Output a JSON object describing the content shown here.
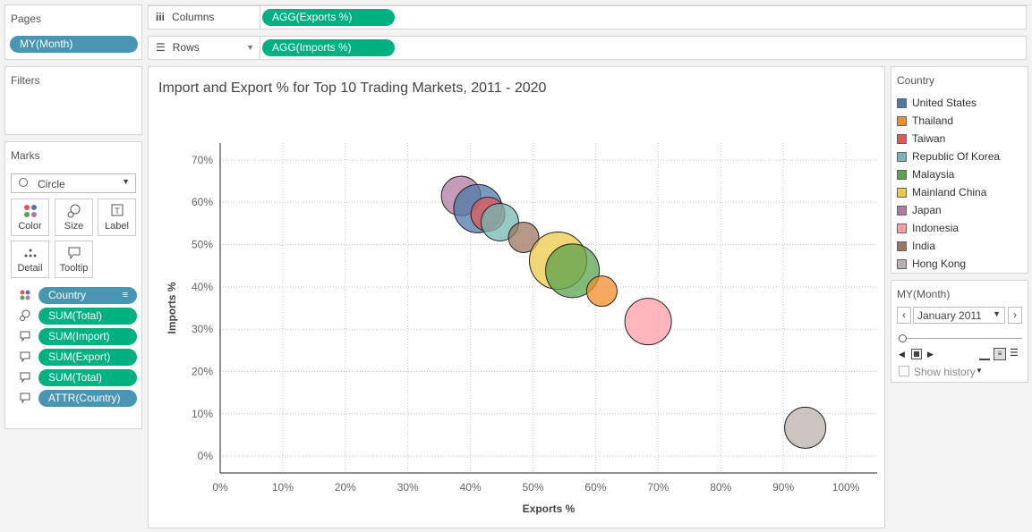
{
  "pages": {
    "title": "Pages",
    "pill": "MY(Month)"
  },
  "filters": {
    "title": "Filters"
  },
  "marks": {
    "title": "Marks",
    "type": "Circle",
    "buttons": [
      {
        "label": "Color",
        "icon": "color-icon"
      },
      {
        "label": "Size",
        "icon": "size-icon"
      },
      {
        "label": "Label",
        "icon": "label-icon"
      },
      {
        "label": "Detail",
        "icon": "detail-icon"
      },
      {
        "label": "Tooltip",
        "icon": "tooltip-icon"
      }
    ],
    "fields": [
      {
        "icon": "color-icon",
        "label": "Country",
        "style": "blue"
      },
      {
        "icon": "size-icon",
        "label": "SUM(Total)",
        "style": "green"
      },
      {
        "icon": "tooltip-icon",
        "label": "SUM(Import)",
        "style": "green"
      },
      {
        "icon": "tooltip-icon",
        "label": "SUM(Export)",
        "style": "green"
      },
      {
        "icon": "tooltip-icon",
        "label": "SUM(Total)",
        "style": "green"
      },
      {
        "icon": "tooltip-icon",
        "label": "ATTR(Country)",
        "style": "blue"
      }
    ]
  },
  "shelves": {
    "columns_label": "Columns",
    "columns_pill": "AGG(Exports %)",
    "rows_label": "Rows",
    "rows_pill": "AGG(Imports %)"
  },
  "legend": {
    "title": "Country",
    "items": [
      {
        "name": "United States",
        "color": "#4e79a7"
      },
      {
        "name": "Thailand",
        "color": "#f28e2b"
      },
      {
        "name": "Taiwan",
        "color": "#e15759"
      },
      {
        "name": "Republic Of Korea",
        "color": "#76b7b2"
      },
      {
        "name": "Malaysia",
        "color": "#59a14f"
      },
      {
        "name": "Mainland China",
        "color": "#edc948"
      },
      {
        "name": "Japan",
        "color": "#b07aa1"
      },
      {
        "name": "Indonesia",
        "color": "#ff9da7"
      },
      {
        "name": "India",
        "color": "#9c755f"
      },
      {
        "name": "Hong Kong",
        "color": "#bab0ac"
      }
    ]
  },
  "page_control": {
    "title": "MY(Month)",
    "selected": "January 2011",
    "show_history": "Show history"
  },
  "chart_data": {
    "type": "scatter",
    "title": "Import and Export % for Top 10 Trading Markets, 2011 - 2020",
    "xlabel": "Exports %",
    "ylabel": "Imports %",
    "xlim": [
      0,
      1.05
    ],
    "ylim": [
      -0.04,
      0.74
    ],
    "x_ticks": [
      0,
      0.1,
      0.2,
      0.3,
      0.4,
      0.5,
      0.6,
      0.7,
      0.8,
      0.9,
      1.0
    ],
    "x_tick_labels": [
      "0%",
      "10%",
      "20%",
      "30%",
      "40%",
      "50%",
      "60%",
      "70%",
      "80%",
      "90%",
      "100%"
    ],
    "y_ticks": [
      0,
      0.1,
      0.2,
      0.3,
      0.4,
      0.5,
      0.6,
      0.7
    ],
    "y_tick_labels": [
      "0%",
      "10%",
      "20%",
      "30%",
      "40%",
      "50%",
      "60%",
      "70%"
    ],
    "grid": true,
    "size_field": "SUM(Total)",
    "points": [
      {
        "country": "Japan",
        "x": 0.385,
        "y": 0.615,
        "size": 22
      },
      {
        "country": "United States",
        "x": 0.412,
        "y": 0.585,
        "size": 27
      },
      {
        "country": "Taiwan",
        "x": 0.428,
        "y": 0.572,
        "size": 19
      },
      {
        "country": "Republic Of Korea",
        "x": 0.447,
        "y": 0.553,
        "size": 21
      },
      {
        "country": "India",
        "x": 0.485,
        "y": 0.517,
        "size": 17
      },
      {
        "country": "Mainland China",
        "x": 0.54,
        "y": 0.462,
        "size": 32
      },
      {
        "country": "Malaysia",
        "x": 0.563,
        "y": 0.438,
        "size": 30
      },
      {
        "country": "Thailand",
        "x": 0.61,
        "y": 0.39,
        "size": 17
      },
      {
        "country": "Indonesia",
        "x": 0.684,
        "y": 0.318,
        "size": 26
      },
      {
        "country": "Hong Kong",
        "x": 0.935,
        "y": 0.067,
        "size": 23
      }
    ]
  }
}
